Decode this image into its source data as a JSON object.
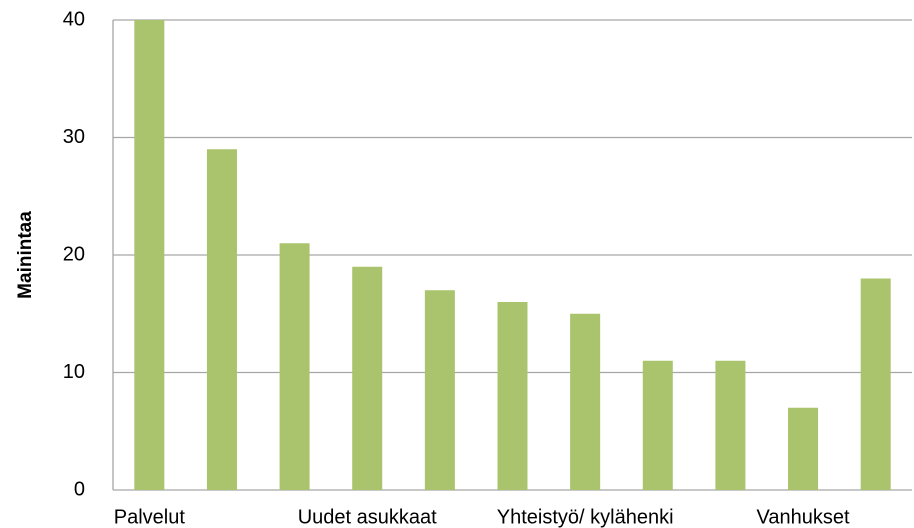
{
  "chart_data": {
    "type": "bar",
    "y_label": "Mainintaa",
    "categories": [
      "Palvelut",
      null,
      null,
      "Uudet asukkaat",
      null,
      null,
      "Yhteistyö/ kylähenki",
      null,
      null,
      "Vanhukset",
      null
    ],
    "values": [
      40,
      29,
      21,
      19,
      17,
      16,
      15,
      11,
      11,
      7,
      18
    ],
    "color": "#a9c46c",
    "ylim": [
      0,
      40
    ],
    "yticks": [
      0,
      10,
      20,
      30,
      40
    ],
    "grid": true
  }
}
